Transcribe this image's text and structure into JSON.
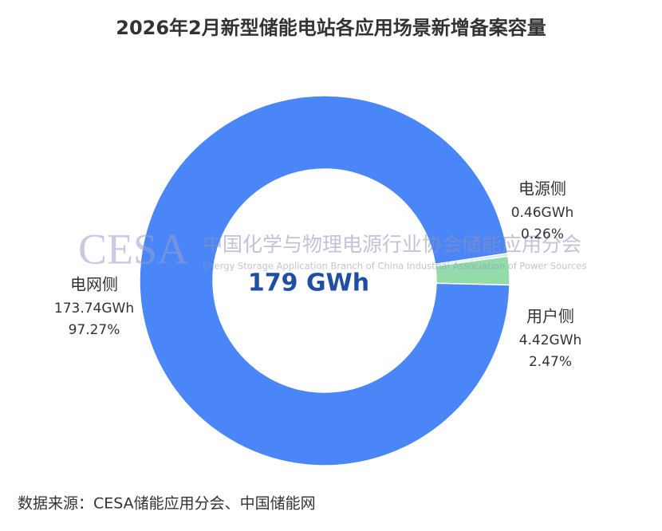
{
  "chart_data": {
    "type": "donut",
    "title": "2026年2月新型储能电站各应用场景新增备案容量",
    "center_label": "179 GWh",
    "categories": [
      "电源侧",
      "用户侧",
      "电网侧"
    ],
    "values": [
      0.46,
      4.42,
      173.74
    ],
    "value_labels": [
      "0.46GWh",
      "4.42GWh",
      "173.74GWh"
    ],
    "percents": [
      0.26,
      2.47,
      97.27
    ],
    "percent_labels": [
      "0.26%",
      "2.47%",
      "97.27%"
    ],
    "colors": [
      "#d9e7fb",
      "#93dcaa",
      "#4a86f7"
    ]
  },
  "watermark": {
    "logo": "CESA",
    "name": "中国化学与物理电源行业协会储能应用分会",
    "name_en": "Energy Storage Application Branch of China Industrial Association of Power Sources"
  },
  "source": "数据来源：CESA储能应用分会、中国储能网"
}
